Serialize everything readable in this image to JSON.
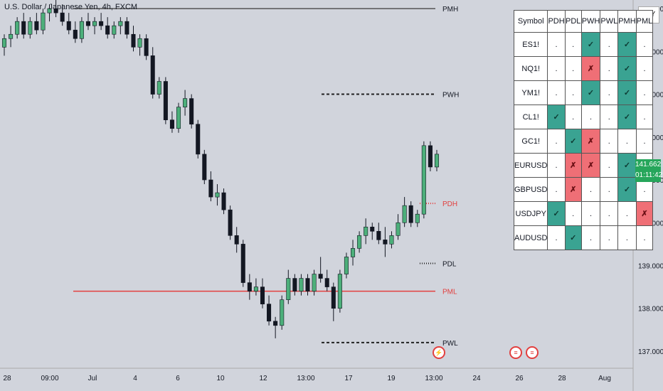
{
  "title": "U.S. Dollar / Japanese Yen, 4h, FXCM",
  "currency": "JPY",
  "current_price": "141.662",
  "countdown": "01:11:42",
  "levels": [
    {
      "label": "PMH",
      "value": 145.0,
      "style": "solid",
      "color": "#555555"
    },
    {
      "label": "PWH",
      "value": 143.0,
      "style": "dashed",
      "color": "#222222"
    },
    {
      "label": "PDH",
      "value": 140.45,
      "style": "dotted",
      "color": "#e2403f"
    },
    {
      "label": "PDL",
      "value": 139.05,
      "style": "dotted",
      "color": "#222222"
    },
    {
      "label": "PML",
      "value": 138.4,
      "style": "solid",
      "color": "#e2403f"
    },
    {
      "label": "PWL",
      "value": 137.2,
      "style": "dashed",
      "color": "#222222"
    }
  ],
  "table": {
    "headers": [
      "Symbol",
      "PDH",
      "PDL",
      "PWH",
      "PWL",
      "PMH",
      "PML"
    ],
    "rows": [
      {
        "symbol": "ES1!",
        "cells": [
          ".",
          ".",
          "✓",
          ".",
          "✓",
          "."
        ]
      },
      {
        "symbol": "NQ1!",
        "cells": [
          ".",
          ".",
          "✗",
          ".",
          "✓",
          "."
        ]
      },
      {
        "symbol": "YM1!",
        "cells": [
          ".",
          ".",
          "✓",
          ".",
          "✓",
          "."
        ]
      },
      {
        "symbol": "CL1!",
        "cells": [
          "✓",
          ".",
          ".",
          ".",
          "✓",
          "."
        ]
      },
      {
        "symbol": "GC1!",
        "cells": [
          ".",
          "✓",
          "✗",
          ".",
          ".",
          "."
        ]
      },
      {
        "symbol": "EURUSD",
        "cells": [
          ".",
          "✗",
          "✗",
          ".",
          "✓",
          "."
        ]
      },
      {
        "symbol": "GBPUSD",
        "cells": [
          ".",
          "✗",
          ".",
          ".",
          "✓",
          "."
        ]
      },
      {
        "symbol": "USDJPY",
        "cells": [
          "✓",
          ".",
          ".",
          ".",
          ".",
          "✗"
        ]
      },
      {
        "symbol": "AUDUSD",
        "cells": [
          ".",
          "✓",
          ".",
          ".",
          ".",
          "."
        ]
      }
    ]
  },
  "chart_data": {
    "type": "candlestick",
    "title": "U.S. Dollar / Japanese Yen, 4h, FXCM",
    "y_ticks": [
      145.0,
      144.0,
      143.0,
      142.0,
      141.0,
      140.0,
      139.0,
      138.0,
      137.0
    ],
    "ylim": [
      136.8,
      145.4
    ],
    "x_ticks": [
      "28",
      "09:00",
      "Jul",
      "4",
      "6",
      "10",
      "12",
      "13:00",
      "17",
      "19",
      "13:00",
      "24",
      "26",
      "28",
      "Aug"
    ],
    "series": [
      {
        "o": 144.1,
        "h": 144.4,
        "l": 143.9,
        "c": 144.3
      },
      {
        "o": 144.3,
        "h": 144.6,
        "l": 144.1,
        "c": 144.4
      },
      {
        "o": 144.4,
        "h": 144.8,
        "l": 144.3,
        "c": 144.7
      },
      {
        "o": 144.7,
        "h": 144.9,
        "l": 144.3,
        "c": 144.4
      },
      {
        "o": 144.4,
        "h": 144.8,
        "l": 144.3,
        "c": 144.7
      },
      {
        "o": 144.7,
        "h": 144.9,
        "l": 144.4,
        "c": 144.5
      },
      {
        "o": 144.5,
        "h": 145.0,
        "l": 144.4,
        "c": 144.9
      },
      {
        "o": 144.9,
        "h": 145.1,
        "l": 144.7,
        "c": 145.0
      },
      {
        "o": 145.0,
        "h": 145.2,
        "l": 144.8,
        "c": 144.9
      },
      {
        "o": 144.9,
        "h": 145.1,
        "l": 144.6,
        "c": 144.7
      },
      {
        "o": 144.7,
        "h": 144.9,
        "l": 144.4,
        "c": 144.5
      },
      {
        "o": 144.5,
        "h": 144.7,
        "l": 144.2,
        "c": 144.3
      },
      {
        "o": 144.3,
        "h": 144.8,
        "l": 144.2,
        "c": 144.7
      },
      {
        "o": 144.7,
        "h": 144.9,
        "l": 144.5,
        "c": 144.6
      },
      {
        "o": 144.6,
        "h": 144.8,
        "l": 144.4,
        "c": 144.7
      },
      {
        "o": 144.7,
        "h": 144.9,
        "l": 144.5,
        "c": 144.6
      },
      {
        "o": 144.6,
        "h": 144.8,
        "l": 144.3,
        "c": 144.4
      },
      {
        "o": 144.4,
        "h": 144.7,
        "l": 144.3,
        "c": 144.6
      },
      {
        "o": 144.6,
        "h": 144.8,
        "l": 144.4,
        "c": 144.7
      },
      {
        "o": 144.7,
        "h": 144.8,
        "l": 144.3,
        "c": 144.4
      },
      {
        "o": 144.4,
        "h": 144.6,
        "l": 144.0,
        "c": 144.1
      },
      {
        "o": 144.1,
        "h": 144.4,
        "l": 143.9,
        "c": 144.3
      },
      {
        "o": 144.3,
        "h": 144.4,
        "l": 143.8,
        "c": 143.9
      },
      {
        "o": 143.9,
        "h": 144.1,
        "l": 142.9,
        "c": 143.0
      },
      {
        "o": 143.0,
        "h": 143.4,
        "l": 142.9,
        "c": 143.3
      },
      {
        "o": 143.3,
        "h": 143.4,
        "l": 142.3,
        "c": 142.4
      },
      {
        "o": 142.4,
        "h": 142.6,
        "l": 142.1,
        "c": 142.2
      },
      {
        "o": 142.2,
        "h": 142.8,
        "l": 142.1,
        "c": 142.7
      },
      {
        "o": 142.7,
        "h": 143.1,
        "l": 142.5,
        "c": 142.9
      },
      {
        "o": 142.9,
        "h": 143.0,
        "l": 142.2,
        "c": 142.3
      },
      {
        "o": 142.3,
        "h": 142.4,
        "l": 141.5,
        "c": 141.6
      },
      {
        "o": 141.6,
        "h": 141.7,
        "l": 140.9,
        "c": 141.0
      },
      {
        "o": 141.0,
        "h": 141.2,
        "l": 140.5,
        "c": 140.6
      },
      {
        "o": 140.6,
        "h": 140.9,
        "l": 140.4,
        "c": 140.7
      },
      {
        "o": 140.7,
        "h": 140.8,
        "l": 140.2,
        "c": 140.3
      },
      {
        "o": 140.3,
        "h": 140.4,
        "l": 139.6,
        "c": 139.7
      },
      {
        "o": 139.7,
        "h": 139.9,
        "l": 139.3,
        "c": 139.5
      },
      {
        "o": 139.5,
        "h": 139.6,
        "l": 138.5,
        "c": 138.6
      },
      {
        "o": 138.6,
        "h": 138.8,
        "l": 138.2,
        "c": 138.4
      },
      {
        "o": 138.4,
        "h": 138.7,
        "l": 138.3,
        "c": 138.5
      },
      {
        "o": 138.5,
        "h": 138.7,
        "l": 138.0,
        "c": 138.1
      },
      {
        "o": 138.1,
        "h": 138.3,
        "l": 137.6,
        "c": 137.7
      },
      {
        "o": 137.7,
        "h": 137.8,
        "l": 137.3,
        "c": 137.6
      },
      {
        "o": 137.6,
        "h": 138.3,
        "l": 137.5,
        "c": 138.2
      },
      {
        "o": 138.2,
        "h": 138.9,
        "l": 138.1,
        "c": 138.7
      },
      {
        "o": 138.7,
        "h": 138.8,
        "l": 138.3,
        "c": 138.4
      },
      {
        "o": 138.4,
        "h": 138.8,
        "l": 138.3,
        "c": 138.7
      },
      {
        "o": 138.7,
        "h": 138.8,
        "l": 138.3,
        "c": 138.4
      },
      {
        "o": 138.4,
        "h": 138.9,
        "l": 138.3,
        "c": 138.8
      },
      {
        "o": 138.8,
        "h": 139.2,
        "l": 138.6,
        "c": 138.7
      },
      {
        "o": 138.7,
        "h": 138.9,
        "l": 138.4,
        "c": 138.5
      },
      {
        "o": 138.5,
        "h": 138.6,
        "l": 137.7,
        "c": 138.0
      },
      {
        "o": 138.0,
        "h": 138.9,
        "l": 137.9,
        "c": 138.8
      },
      {
        "o": 138.8,
        "h": 139.3,
        "l": 138.7,
        "c": 139.2
      },
      {
        "o": 139.2,
        "h": 139.6,
        "l": 139.0,
        "c": 139.4
      },
      {
        "o": 139.4,
        "h": 139.8,
        "l": 139.3,
        "c": 139.7
      },
      {
        "o": 139.7,
        "h": 140.1,
        "l": 139.5,
        "c": 139.9
      },
      {
        "o": 139.9,
        "h": 140.0,
        "l": 139.6,
        "c": 139.8
      },
      {
        "o": 139.8,
        "h": 140.0,
        "l": 139.5,
        "c": 139.6
      },
      {
        "o": 139.6,
        "h": 139.9,
        "l": 139.2,
        "c": 139.5
      },
      {
        "o": 139.5,
        "h": 139.8,
        "l": 139.4,
        "c": 139.7
      },
      {
        "o": 139.7,
        "h": 140.2,
        "l": 139.6,
        "c": 140.0
      },
      {
        "o": 140.0,
        "h": 140.6,
        "l": 139.9,
        "c": 140.4
      },
      {
        "o": 140.4,
        "h": 140.5,
        "l": 139.9,
        "c": 140.0
      },
      {
        "o": 140.0,
        "h": 140.3,
        "l": 139.9,
        "c": 140.2
      },
      {
        "o": 140.2,
        "h": 141.9,
        "l": 140.1,
        "c": 141.8
      },
      {
        "o": 141.8,
        "h": 141.9,
        "l": 141.2,
        "c": 141.3
      },
      {
        "o": 141.3,
        "h": 141.7,
        "l": 141.2,
        "c": 141.6
      }
    ]
  }
}
